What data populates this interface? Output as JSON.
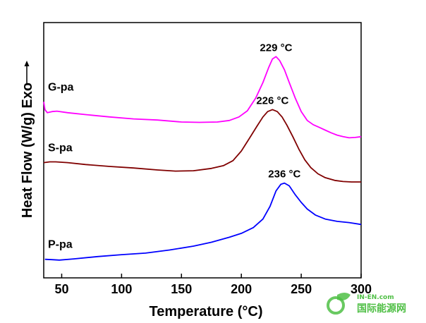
{
  "chart_data": {
    "type": "line",
    "xlabel": "Temperature (°C)",
    "ylabel": "Heat Flow (W/g)  Exo",
    "xlim": [
      35,
      300
    ],
    "x_ticks": [
      "50",
      "100",
      "150",
      "200",
      "250",
      "300"
    ],
    "x_tick_values": [
      50,
      100,
      150,
      200,
      250,
      300
    ],
    "y_ticks_shown": false,
    "grid": false,
    "series": [
      {
        "name": "G-pa",
        "color": "#ff00ff",
        "peak_label": "229 °C",
        "points": [
          [
            35,
            1.35
          ],
          [
            36,
            1.15
          ],
          [
            38,
            1.07
          ],
          [
            42,
            1.1
          ],
          [
            46,
            1.11
          ],
          [
            55,
            1.07
          ],
          [
            70,
            1.02
          ],
          [
            90,
            0.96
          ],
          [
            110,
            0.91
          ],
          [
            130,
            0.88
          ],
          [
            150,
            0.83
          ],
          [
            165,
            0.82
          ],
          [
            180,
            0.83
          ],
          [
            190,
            0.87
          ],
          [
            198,
            0.96
          ],
          [
            205,
            1.12
          ],
          [
            212,
            1.45
          ],
          [
            218,
            1.85
          ],
          [
            223,
            2.25
          ],
          [
            226,
            2.46
          ],
          [
            229,
            2.52
          ],
          [
            232,
            2.42
          ],
          [
            236,
            2.18
          ],
          [
            240,
            1.85
          ],
          [
            245,
            1.45
          ],
          [
            250,
            1.1
          ],
          [
            255,
            0.87
          ],
          [
            260,
            0.76
          ],
          [
            265,
            0.69
          ],
          [
            270,
            0.62
          ],
          [
            275,
            0.55
          ],
          [
            280,
            0.49
          ],
          [
            285,
            0.45
          ],
          [
            290,
            0.42
          ],
          [
            295,
            0.43
          ],
          [
            300,
            0.45
          ]
        ]
      },
      {
        "name": "S-pa",
        "color": "#800000",
        "peak_label": "226 °C",
        "points": [
          [
            35,
            -0.22
          ],
          [
            40,
            -0.2
          ],
          [
            45,
            -0.2
          ],
          [
            55,
            -0.22
          ],
          [
            70,
            -0.27
          ],
          [
            90,
            -0.32
          ],
          [
            110,
            -0.36
          ],
          [
            130,
            -0.41
          ],
          [
            145,
            -0.44
          ],
          [
            160,
            -0.43
          ],
          [
            175,
            -0.37
          ],
          [
            185,
            -0.3
          ],
          [
            193,
            -0.17
          ],
          [
            200,
            0.08
          ],
          [
            207,
            0.42
          ],
          [
            213,
            0.72
          ],
          [
            218,
            0.96
          ],
          [
            222,
            1.1
          ],
          [
            226,
            1.15
          ],
          [
            230,
            1.1
          ],
          [
            234,
            0.96
          ],
          [
            238,
            0.75
          ],
          [
            243,
            0.45
          ],
          [
            248,
            0.13
          ],
          [
            253,
            -0.15
          ],
          [
            258,
            -0.35
          ],
          [
            264,
            -0.51
          ],
          [
            270,
            -0.61
          ],
          [
            278,
            -0.68
          ],
          [
            285,
            -0.71
          ],
          [
            292,
            -0.72
          ],
          [
            300,
            -0.72
          ]
        ]
      },
      {
        "name": "P-pa",
        "color": "#0000ff",
        "peak_label": "236 °C",
        "points": [
          [
            36,
            -2.72
          ],
          [
            42,
            -2.73
          ],
          [
            48,
            -2.74
          ],
          [
            60,
            -2.71
          ],
          [
            80,
            -2.65
          ],
          [
            100,
            -2.6
          ],
          [
            120,
            -2.56
          ],
          [
            140,
            -2.48
          ],
          [
            160,
            -2.38
          ],
          [
            175,
            -2.28
          ],
          [
            190,
            -2.15
          ],
          [
            200,
            -2.05
          ],
          [
            210,
            -1.9
          ],
          [
            218,
            -1.68
          ],
          [
            224,
            -1.35
          ],
          [
            229,
            -0.95
          ],
          [
            233,
            -0.78
          ],
          [
            236,
            -0.75
          ],
          [
            240,
            -0.82
          ],
          [
            245,
            -1.05
          ],
          [
            250,
            -1.25
          ],
          [
            255,
            -1.42
          ],
          [
            262,
            -1.58
          ],
          [
            270,
            -1.68
          ],
          [
            280,
            -1.74
          ],
          [
            290,
            -1.77
          ],
          [
            300,
            -1.82
          ]
        ]
      }
    ]
  },
  "watermark": {
    "line1": "IN-EN.com",
    "line2": "国际能源网",
    "color": "#4fbf45",
    "icon": "leaf-logo-icon"
  }
}
